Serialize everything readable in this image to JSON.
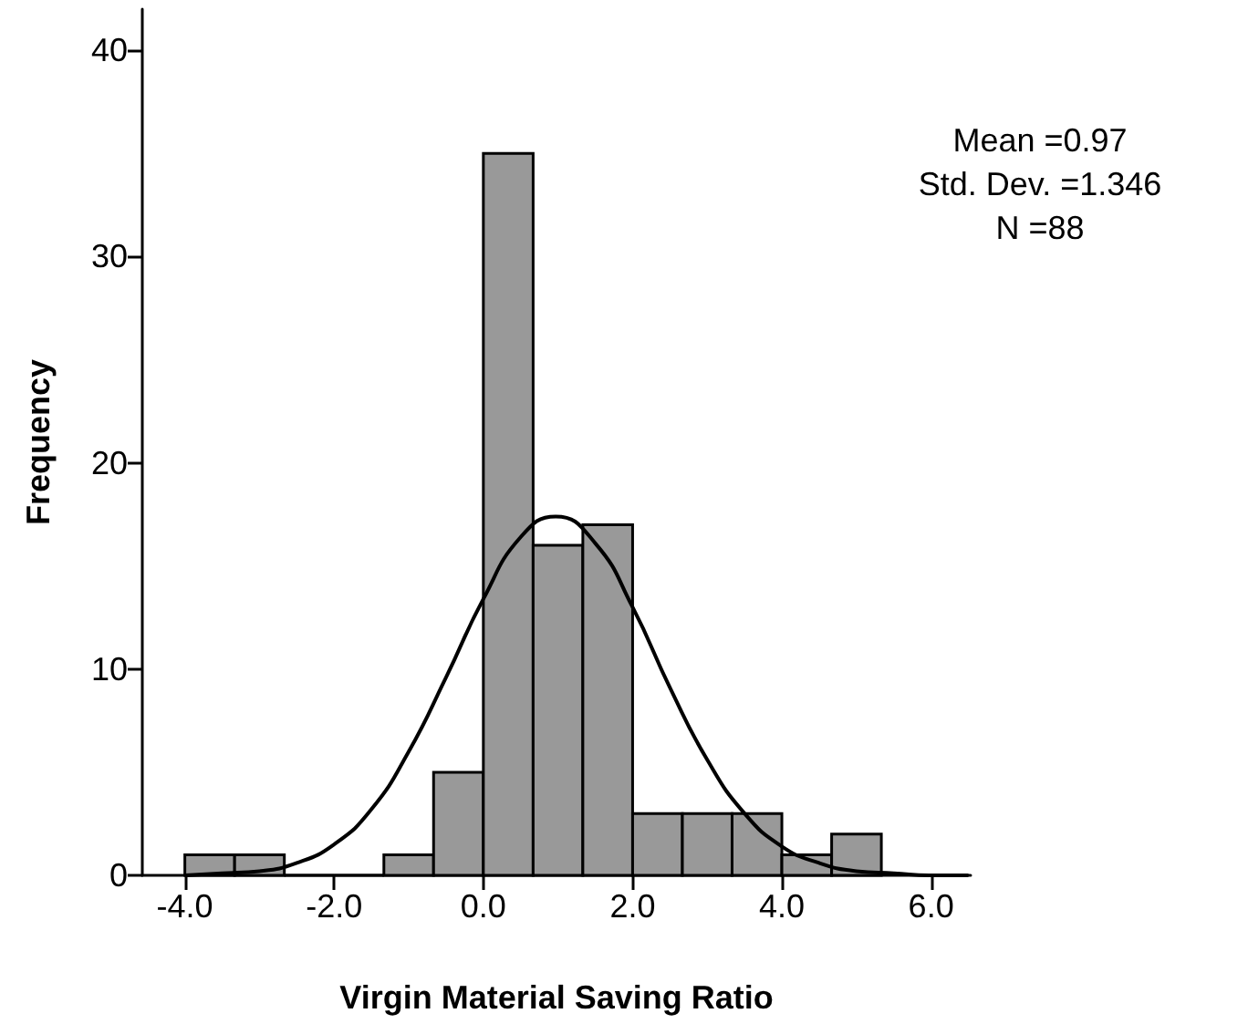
{
  "chart_data": {
    "type": "histogram",
    "xlabel": "Virgin Material Saving Ratio",
    "ylabel": "Frequency",
    "bins": [
      -4,
      -3.333,
      -2.667,
      -2,
      -1.333,
      -0.667,
      0,
      0.667,
      1.333,
      2,
      2.667,
      3.333,
      4,
      4.667,
      5.333
    ],
    "values": [
      1,
      1,
      0,
      0,
      1,
      5,
      35,
      16,
      17,
      3,
      3,
      3,
      1,
      2
    ],
    "color": "#999999",
    "series": [
      {
        "type": "line",
        "color": "#000000",
        "x": [
          -4,
          -3.5,
          -3,
          -2.5,
          -2,
          -1.5,
          -1,
          -0.5,
          0,
          0.5,
          0.97,
          1.5,
          2,
          2.5,
          3,
          3.5,
          4,
          4.5,
          5,
          5.5,
          6,
          6.5
        ],
        "values": [
          0,
          0.1,
          0.2,
          0.6,
          1.5,
          3.2,
          6,
          9.6,
          13.4,
          16.4,
          17.4,
          16.1,
          13,
          9.1,
          5.6,
          3,
          1.4,
          0.6,
          0.2,
          0.1,
          0,
          0
        ]
      }
    ],
    "xlim": [
      -4.57,
      6.53
    ],
    "xticks": [
      {
        "value": -4,
        "label": "-4.0"
      },
      {
        "value": -2,
        "label": "-2.0"
      },
      {
        "value": 0,
        "label": "0.0"
      },
      {
        "value": 2,
        "label": "2.0"
      },
      {
        "value": 4,
        "label": "4.0"
      },
      {
        "value": 6,
        "label": "6.0"
      }
    ],
    "ylim": [
      0,
      42
    ],
    "yticks": [
      0,
      10,
      20,
      30,
      40
    ],
    "grid": false,
    "annotations": [
      "Mean =0.97",
      "Std. Dev. =1.346",
      "N =88"
    ]
  }
}
